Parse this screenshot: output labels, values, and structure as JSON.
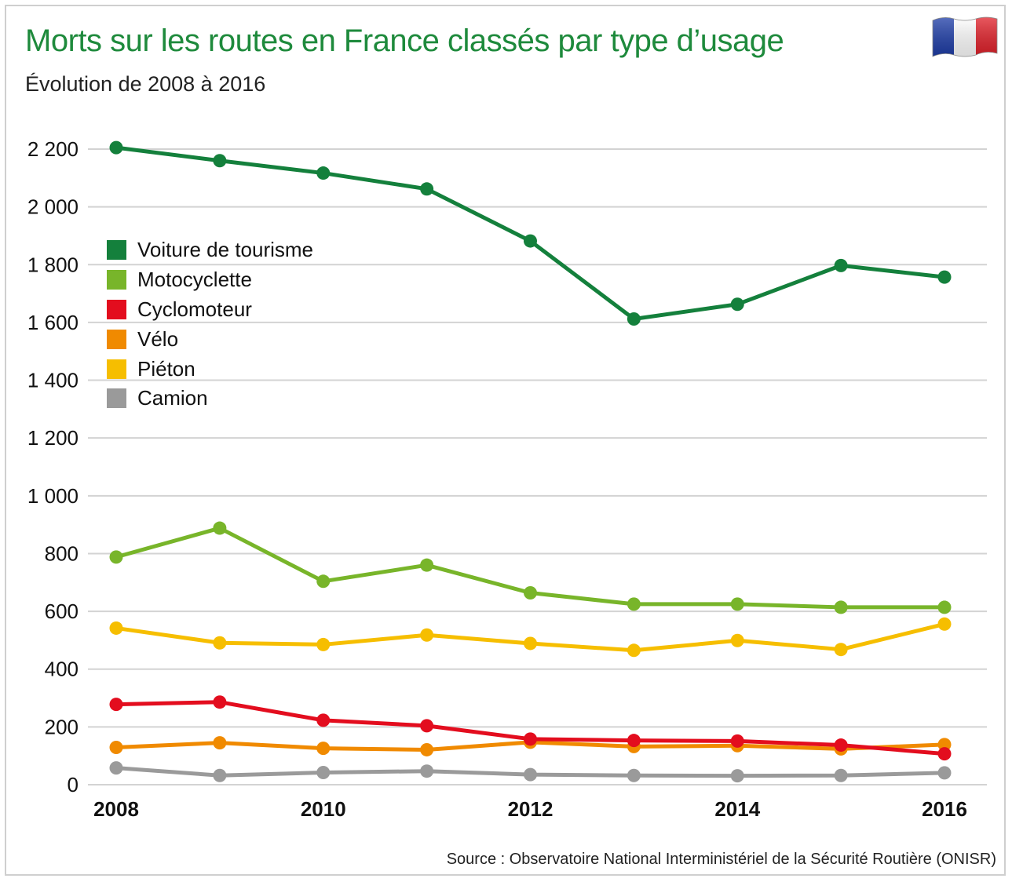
{
  "header": {
    "title": "Morts sur les routes en France classés par type d’usage",
    "subtitle": "Évolution de 2008 à 2016"
  },
  "footer": {
    "source": "Source : Observatoire National Interministériel de la Sécurité Routière (ONISR)"
  },
  "flag": {
    "icon": "france-flag-icon",
    "colors": [
      "#1f3ea8",
      "#ffffff",
      "#e1212a"
    ]
  },
  "chart_data": {
    "type": "line",
    "title": "Morts sur les routes en France classés par type d’usage",
    "subtitle": "Évolution de 2008 à 2016",
    "xlabel": "",
    "ylabel": "",
    "x": [
      2008,
      2009,
      2010,
      2011,
      2012,
      2013,
      2014,
      2015,
      2016
    ],
    "x_tick_labels": [
      {
        "value": 2008,
        "label": "2008"
      },
      {
        "value": 2010,
        "label": "2010"
      },
      {
        "value": 2012,
        "label": "2012"
      },
      {
        "value": 2014,
        "label": "2014"
      },
      {
        "value": 2016,
        "label": "2016"
      }
    ],
    "y_ticks": [
      {
        "value": 0,
        "label": "0"
      },
      {
        "value": 200,
        "label": "200"
      },
      {
        "value": 400,
        "label": "400"
      },
      {
        "value": 600,
        "label": "600"
      },
      {
        "value": 800,
        "label": "800"
      },
      {
        "value": 1000,
        "label": "1 000"
      },
      {
        "value": 1200,
        "label": "1 200"
      },
      {
        "value": 1400,
        "label": "1 400"
      },
      {
        "value": 1600,
        "label": "1 600"
      },
      {
        "value": 1800,
        "label": "1 800"
      },
      {
        "value": 2000,
        "label": "2 000"
      },
      {
        "value": 2200,
        "label": "2 200"
      }
    ],
    "ylim": [
      0,
      2200
    ],
    "grid": true,
    "legend_position": "top-left",
    "series": [
      {
        "name": "Voiture de tourisme",
        "color": "#14803c",
        "values": [
          2205,
          2160,
          2117,
          2062,
          1882,
          1612,
          1663,
          1797,
          1757
        ]
      },
      {
        "name": "Motocyclette",
        "color": "#78b52a",
        "values": [
          788,
          888,
          704,
          760,
          664,
          625,
          625,
          614,
          614
        ]
      },
      {
        "name": "Cyclomoteur",
        "color": "#e30d1e",
        "values": [
          278,
          286,
          223,
          204,
          158,
          153,
          151,
          137,
          107
        ]
      },
      {
        "name": "Vélo",
        "color": "#f08a00",
        "values": [
          129,
          145,
          126,
          121,
          147,
          132,
          135,
          124,
          139
        ]
      },
      {
        "name": "Piéton",
        "color": "#f6be00",
        "values": [
          542,
          491,
          485,
          518,
          489,
          465,
          499,
          468,
          556
        ]
      },
      {
        "name": "Camion",
        "color": "#9a9a9a",
        "values": [
          58,
          32,
          42,
          47,
          35,
          32,
          31,
          32,
          41
        ]
      }
    ]
  }
}
